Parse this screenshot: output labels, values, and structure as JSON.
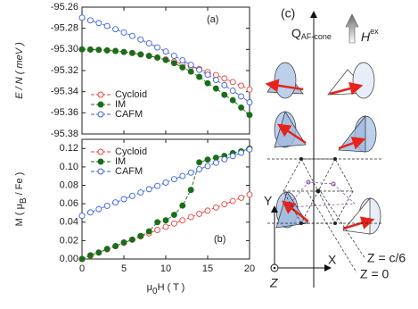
{
  "chart_data": [
    {
      "type": "line",
      "panel_label": "(a)",
      "y_label": "E / N ( meV )",
      "x": [
        0,
        1,
        2,
        3,
        4,
        5,
        6,
        7,
        8,
        9,
        10,
        11,
        12,
        13,
        14,
        15,
        16,
        17,
        18,
        19,
        20
      ],
      "xlim": [
        0,
        20
      ],
      "xticks": [
        0,
        5,
        10,
        15,
        20
      ],
      "ylim": [
        -95.38,
        -95.26
      ],
      "yticks": [
        -95.38,
        -95.36,
        -95.34,
        -95.32,
        {
          "value": -95.3,
          "label": "-95.30"
        },
        -95.28,
        -95.26
      ],
      "legend": "lower left",
      "series": [
        {
          "name": "Cycloid",
          "color": "#e8433a",
          "marker": "open",
          "values": [
            -95.3,
            -95.3001,
            -95.3004,
            -95.3009,
            -95.3015,
            -95.3024,
            -95.3034,
            -95.3047,
            -95.3061,
            -95.3077,
            -95.3095,
            -95.3115,
            -95.3137,
            -95.3161,
            -95.3186,
            -95.3214,
            -95.3243,
            -95.3275,
            -95.3308,
            -95.3343,
            -95.338
          ]
        },
        {
          "name": "IM",
          "color": "#1a6e1a",
          "marker": "filled",
          "values": [
            -95.3,
            -95.3001,
            -95.3004,
            -95.3009,
            -95.3015,
            -95.3024,
            -95.3034,
            -95.3047,
            -95.3061,
            -95.3077,
            -95.31,
            -95.313,
            -95.317,
            -95.321,
            -95.326,
            -95.332,
            -95.337,
            -95.343,
            -95.348,
            -95.355,
            -95.362
          ]
        },
        {
          "name": "CAFM",
          "color": "#3a5fe0",
          "marker": "open",
          "values": [
            -95.27,
            -95.2725,
            -95.2751,
            -95.2779,
            -95.2809,
            -95.284,
            -95.2873,
            -95.2907,
            -95.2943,
            -95.2981,
            -95.302,
            -95.3061,
            -95.3103,
            -95.3147,
            -95.3193,
            -95.324,
            -95.3289,
            -95.3339,
            -95.3391,
            -95.3445,
            -95.35
          ]
        }
      ]
    },
    {
      "type": "line",
      "panel_label": "(b)",
      "y_label": {
        "main": "M ( μ",
        "sub": "B",
        "rest": " / Fe )"
      },
      "x_label": {
        "main": "μ",
        "sub": "0",
        "rest": "H ( T )"
      },
      "x": [
        0,
        1,
        2,
        3,
        4,
        5,
        6,
        7,
        8,
        9,
        10,
        11,
        12,
        13,
        14,
        15,
        16,
        17,
        18,
        19,
        20
      ],
      "xlim": [
        0,
        20
      ],
      "xticks": [
        0,
        5,
        10,
        15,
        20
      ],
      "ylim": [
        0,
        0.13
      ],
      "yticks": [
        {
          "value": 0,
          "label": "0.00"
        },
        0.02,
        0.04,
        0.06,
        0.08,
        {
          "value": 0.1,
          "label": "0.10"
        },
        0.12
      ],
      "legend": "upper left",
      "series": [
        {
          "name": "Cycloid",
          "color": "#e8433a",
          "marker": "open",
          "values": [
            0,
            0.0035,
            0.007,
            0.0105,
            0.014,
            0.0175,
            0.021,
            0.0245,
            0.028,
            0.0315,
            0.035,
            0.0385,
            0.042,
            0.0455,
            0.049,
            0.0525,
            0.056,
            0.0595,
            0.063,
            0.0665,
            0.07
          ]
        },
        {
          "name": "IM",
          "color": "#1a6e1a",
          "marker": "filled",
          "values": [
            0,
            0.004,
            0.007,
            0.011,
            0.014,
            0.018,
            0.021,
            0.025,
            0.03,
            0.04,
            0.042,
            0.048,
            0.058,
            0.075,
            0.105,
            0.108,
            0.11,
            0.112,
            0.115,
            0.117,
            0.12
          ]
        },
        {
          "name": "CAFM",
          "color": "#3a5fe0",
          "marker": "open",
          "values": [
            0.047,
            0.0506,
            0.0542,
            0.0578,
            0.0614,
            0.065,
            0.0686,
            0.0722,
            0.0758,
            0.0794,
            0.083,
            0.0866,
            0.0902,
            0.0938,
            0.0974,
            0.101,
            0.1046,
            0.1082,
            0.1118,
            0.1154,
            0.119
          ]
        }
      ]
    }
  ],
  "diagram": {
    "panel_label": "(c)",
    "q_label": {
      "main": "Q",
      "sub": "AF-cone"
    },
    "h_label": {
      "main": "H",
      "sup": "ex"
    },
    "axis_y": "Y",
    "axis_x": "X",
    "axis_z": "Z",
    "plane_top": "Z = c/6",
    "plane_bottom": "Z = 0"
  }
}
